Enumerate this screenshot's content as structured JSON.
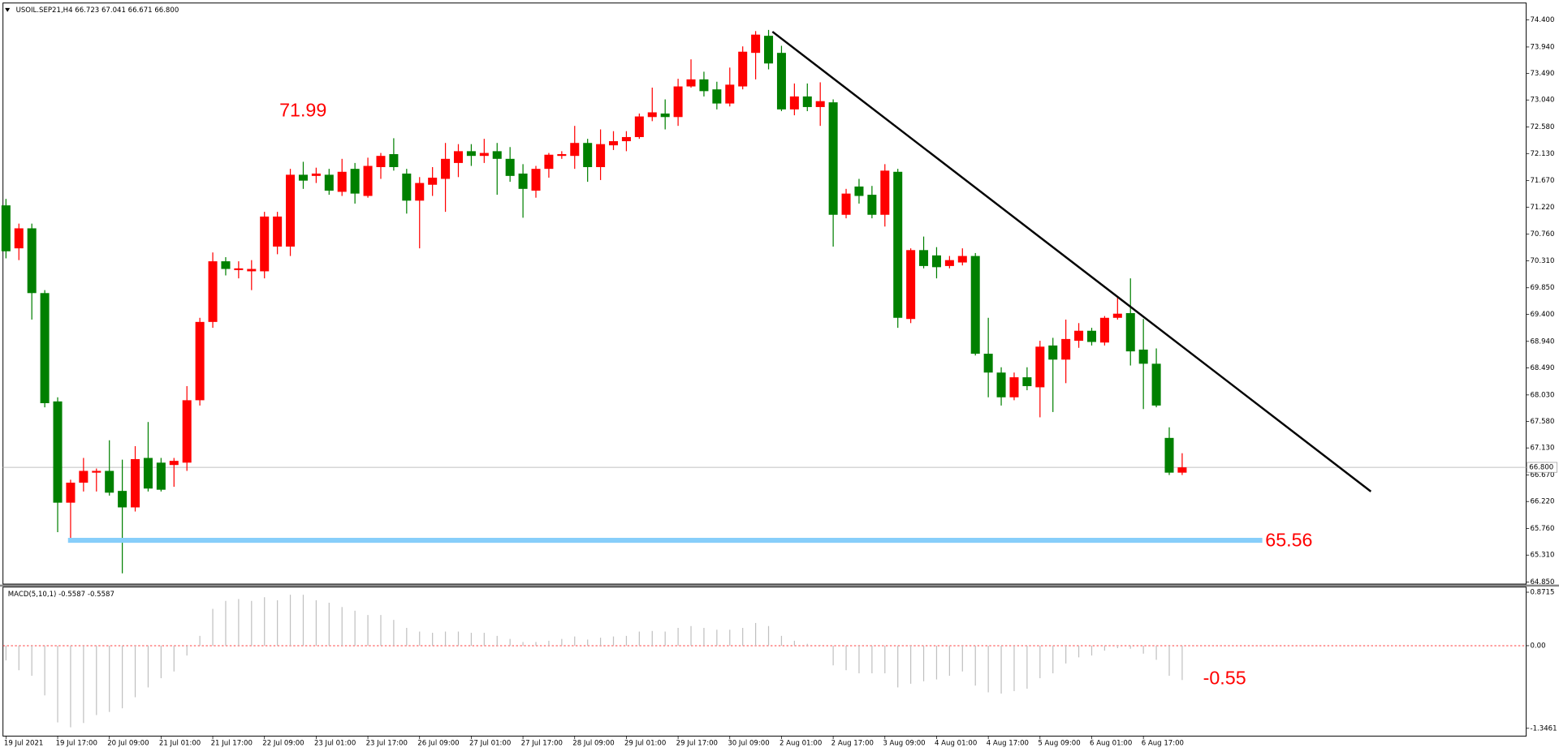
{
  "chart_data": [
    {
      "type": "candlestick",
      "title": "USOIL.SEP21,H4  66.723 67.041 66.671 66.800",
      "categories": [
        "19 Jul 2021",
        null,
        null,
        null,
        "19 Jul 17:00",
        null,
        null,
        null,
        "20 Jul 09:00",
        null,
        null,
        null,
        "21 Jul 01:00",
        null,
        null,
        null,
        "21 Jul 17:00",
        null,
        null,
        null,
        "22 Jul 09:00",
        null,
        null,
        null,
        "23 Jul 01:00",
        null,
        null,
        null,
        "23 Jul 17:00",
        null,
        null,
        null,
        "26 Jul 09:00",
        null,
        null,
        null,
        "27 Jul 01:00",
        null,
        null,
        null,
        "27 Jul 17:00",
        null,
        null,
        null,
        "28 Jul 09:00",
        null,
        null,
        null,
        "29 Jul 01:00",
        null,
        null,
        null,
        "29 Jul 17:00",
        null,
        null,
        null,
        "30 Jul 09:00",
        null,
        null,
        null,
        "2 Aug 01:00",
        null,
        null,
        null,
        "2 Aug 17:00",
        null,
        null,
        null,
        "3 Aug 09:00",
        null,
        null,
        null,
        "4 Aug 01:00",
        null,
        null,
        null,
        "4 Aug 17:00",
        null,
        null,
        null,
        "5 Aug 09:00",
        null,
        null,
        null,
        "6 Aug 01:00",
        null,
        null,
        null,
        "6 Aug 17:00",
        null,
        null,
        null
      ],
      "open": [
        71.25,
        70.52,
        70.86,
        69.76,
        67.92,
        66.2,
        66.54,
        66.71,
        66.74,
        66.4,
        66.12,
        66.96,
        66.88,
        66.84,
        66.88,
        67.94,
        69.27,
        70.3,
        70.15,
        70.13,
        70.13,
        70.55,
        70.55,
        71.77,
        71.75,
        71.77,
        71.48,
        71.87,
        71.41,
        71.9,
        72.12,
        71.79,
        71.33,
        71.6,
        71.7,
        71.97,
        72.17,
        72.09,
        72.17,
        72.04,
        71.79,
        71.5,
        71.87,
        72.09,
        72.09,
        72.31,
        71.9,
        72.27,
        72.34,
        72.41,
        72.75,
        72.81,
        72.75,
        73.27,
        73.39,
        73.22,
        72.98,
        73.27,
        73.84,
        74.13,
        73.84,
        72.88,
        73.1,
        72.92,
        73.0,
        71.09,
        71.57,
        71.43,
        71.09,
        71.82,
        69.32,
        70.49,
        70.4,
        70.22,
        70.28,
        70.39,
        68.73,
        68.41,
        67.99,
        68.33,
        68.16,
        68.87,
        68.63,
        68.95,
        69.12,
        68.92,
        69.34,
        69.42,
        68.8,
        68.56,
        67.3,
        66.71
      ],
      "high": [
        71.36,
        70.94,
        70.94,
        69.81,
        67.99,
        66.59,
        66.96,
        66.78,
        67.26,
        66.93,
        67.16,
        67.57,
        66.96,
        66.96,
        68.18,
        69.34,
        70.45,
        70.37,
        70.3,
        70.32,
        71.14,
        71.14,
        71.87,
        71.99,
        71.89,
        71.87,
        72.04,
        71.97,
        72.06,
        72.14,
        72.39,
        71.87,
        71.73,
        71.9,
        72.31,
        72.29,
        72.29,
        72.38,
        72.31,
        72.24,
        71.95,
        71.92,
        72.14,
        72.17,
        72.6,
        72.38,
        72.54,
        72.51,
        72.51,
        72.81,
        73.25,
        73.05,
        73.4,
        73.73,
        73.52,
        73.35,
        73.59,
        73.95,
        74.21,
        74.23,
        73.96,
        73.32,
        73.32,
        73.34,
        73.05,
        71.53,
        71.7,
        71.58,
        71.95,
        71.87,
        70.52,
        70.72,
        70.54,
        70.39,
        70.52,
        70.44,
        69.34,
        68.5,
        68.41,
        68.5,
        68.95,
        69.0,
        69.31,
        69.25,
        69.17,
        69.37,
        69.68,
        70.01,
        69.32,
        68.82,
        67.48,
        67.04
      ],
      "low": [
        70.35,
        70.32,
        69.31,
        67.82,
        65.7,
        65.54,
        66.39,
        66.39,
        66.32,
        65.0,
        66.05,
        66.39,
        66.39,
        66.47,
        66.74,
        67.85,
        69.17,
        70.06,
        70.01,
        69.81,
        70.01,
        70.42,
        70.39,
        71.53,
        71.63,
        71.43,
        71.41,
        71.28,
        71.38,
        71.7,
        71.84,
        71.11,
        70.52,
        71.41,
        71.14,
        71.73,
        71.92,
        71.97,
        71.43,
        71.65,
        71.04,
        71.38,
        71.72,
        72.04,
        71.87,
        71.65,
        71.68,
        72.19,
        72.17,
        72.38,
        72.68,
        72.54,
        72.6,
        73.25,
        73.1,
        72.88,
        72.93,
        73.22,
        73.39,
        73.56,
        72.85,
        72.78,
        72.85,
        72.6,
        70.55,
        71.03,
        71.28,
        71.03,
        70.89,
        69.17,
        69.25,
        70.18,
        70.01,
        70.18,
        70.23,
        68.7,
        67.99,
        67.85,
        67.94,
        68.11,
        67.65,
        67.74,
        68.23,
        68.83,
        68.87,
        68.87,
        69.31,
        68.53,
        67.79,
        67.82,
        66.67,
        66.67
      ],
      "close": [
        70.47,
        70.86,
        69.76,
        67.89,
        66.2,
        66.54,
        66.74,
        66.74,
        66.37,
        66.12,
        66.94,
        66.44,
        66.42,
        66.91,
        67.94,
        69.27,
        70.3,
        70.17,
        70.18,
        70.17,
        71.06,
        71.06,
        71.77,
        71.67,
        71.79,
        71.5,
        71.82,
        71.45,
        71.92,
        72.09,
        71.9,
        71.33,
        71.63,
        71.72,
        72.04,
        72.17,
        72.09,
        72.14,
        72.04,
        71.75,
        71.53,
        71.87,
        72.11,
        72.12,
        72.31,
        71.9,
        72.29,
        72.34,
        72.41,
        72.76,
        72.83,
        72.75,
        73.27,
        73.39,
        73.19,
        72.98,
        73.3,
        73.86,
        74.15,
        73.66,
        72.88,
        73.1,
        72.92,
        73.02,
        71.09,
        71.45,
        71.41,
        71.09,
        71.84,
        69.34,
        70.49,
        70.22,
        70.2,
        70.32,
        70.39,
        68.73,
        68.41,
        67.99,
        68.33,
        68.18,
        68.85,
        68.63,
        68.98,
        69.12,
        68.93,
        69.34,
        69.41,
        68.77,
        68.56,
        67.85,
        66.71,
        66.8
      ],
      "up_color": "#ff0000",
      "down_color": "#008000",
      "ylim": [
        64.817,
        74.687
      ],
      "yticks": [
        {
          "value": 74.4,
          "label": "74.400"
        },
        {
          "value": 73.94,
          "label": "73.940"
        },
        {
          "value": 73.49,
          "label": "73.490"
        },
        {
          "value": 73.04,
          "label": "73.040"
        },
        {
          "value": 72.58,
          "label": "72.580"
        },
        {
          "value": 72.13,
          "label": "72.130"
        },
        {
          "value": 71.67,
          "label": "71.670"
        },
        {
          "value": 71.22,
          "label": "71.220"
        },
        {
          "value": 70.76,
          "label": "70.760"
        },
        {
          "value": 70.31,
          "label": "70.310"
        },
        {
          "value": 69.85,
          "label": "69.850"
        },
        {
          "value": 69.4,
          "label": "69.400"
        },
        {
          "value": 68.94,
          "label": "68.940"
        },
        {
          "value": 68.49,
          "label": "68.490"
        },
        {
          "value": 68.03,
          "label": "68.030"
        },
        {
          "value": 67.58,
          "label": "67.580"
        },
        {
          "value": 67.13,
          "label": "67.130"
        },
        {
          "value": 66.67,
          "label": "66.670"
        },
        {
          "value": 66.22,
          "label": "66.220"
        },
        {
          "value": 65.76,
          "label": "65.760"
        },
        {
          "value": 65.31,
          "label": "65.310"
        },
        {
          "value": 64.85,
          "label": "64.850"
        }
      ],
      "current_price": {
        "value": 66.8,
        "label": "66.800"
      },
      "support_line": {
        "value": 65.56,
        "x": [
          4.8,
          97.2
        ],
        "color": "#87cefa"
      },
      "trend_line": {
        "x": [
          59.3,
          105.6
        ],
        "y": [
          74.2,
          66.39
        ],
        "color": "#000000"
      },
      "annotations": [
        {
          "text": "71.99"
        }
      ]
    },
    {
      "type": "bar",
      "title": "MACD(5,10,1) -0.5587 -0.5587",
      "values": [
        -0.24,
        -0.4,
        -0.49,
        -0.81,
        -1.25,
        -1.33,
        -1.26,
        -1.13,
        -1.08,
        -1.02,
        -0.84,
        -0.68,
        -0.53,
        -0.42,
        -0.16,
        0.16,
        0.6,
        0.73,
        0.76,
        0.73,
        0.79,
        0.74,
        0.83,
        0.83,
        0.74,
        0.7,
        0.63,
        0.57,
        0.5,
        0.5,
        0.42,
        0.29,
        0.23,
        0.21,
        0.23,
        0.23,
        0.21,
        0.21,
        0.16,
        0.11,
        0.06,
        0.06,
        0.08,
        0.11,
        0.15,
        0.1,
        0.13,
        0.15,
        0.16,
        0.23,
        0.24,
        0.23,
        0.29,
        0.32,
        0.29,
        0.26,
        0.26,
        0.29,
        0.37,
        0.32,
        0.16,
        0.08,
        0.03,
        0.01,
        -0.32,
        -0.4,
        -0.45,
        -0.45,
        -0.45,
        -0.68,
        -0.62,
        -0.58,
        -0.55,
        -0.49,
        -0.42,
        -0.65,
        -0.76,
        -0.78,
        -0.74,
        -0.7,
        -0.53,
        -0.45,
        -0.29,
        -0.19,
        -0.16,
        -0.08,
        -0.04,
        -0.05,
        -0.13,
        -0.23,
        -0.49,
        -0.56
      ],
      "color": "#c0c0c0",
      "level_color": "#ff0000",
      "ylim": [
        -1.473,
        0.955
      ],
      "yticks": [
        0.8715,
        {
          "value": 0,
          "label": "0.00"
        },
        -1.3461
      ],
      "annotations": [
        {
          "text": "-0.55"
        }
      ]
    }
  ]
}
